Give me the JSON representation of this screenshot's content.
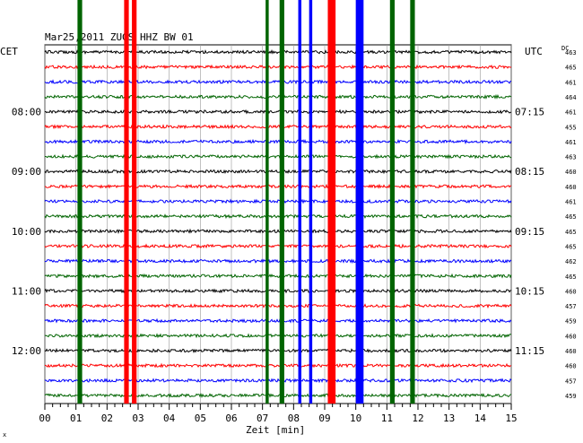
{
  "chart_data": {
    "type": "line",
    "title": "Mar25,2011  ZUGS HHZ BW 01",
    "left_zone_label": "CET",
    "right_zone_label": "UTC",
    "dc_header": "DC",
    "xlabel": "Zeit [min]",
    "x_ticks": [
      "00",
      "01",
      "02",
      "03",
      "04",
      "05",
      "06",
      "07",
      "08",
      "09",
      "10",
      "11",
      "12",
      "13",
      "14",
      "15"
    ],
    "xlim": [
      0,
      15
    ],
    "traces_per_row_group": 4,
    "trace_colors": [
      "#000000",
      "#ff0000",
      "#0000ff",
      "#006400"
    ],
    "left_time_labels": [
      {
        "trace": 4,
        "text": "08:00"
      },
      {
        "trace": 8,
        "text": "09:00"
      },
      {
        "trace": 12,
        "text": "10:00"
      },
      {
        "trace": 16,
        "text": "11:00"
      },
      {
        "trace": 20,
        "text": "12:00"
      }
    ],
    "right_time_labels": [
      {
        "trace": 4,
        "text": "07:15"
      },
      {
        "trace": 8,
        "text": "08:15"
      },
      {
        "trace": 12,
        "text": "09:15"
      },
      {
        "trace": 16,
        "text": "10:15"
      },
      {
        "trace": 20,
        "text": "11:15"
      }
    ],
    "dc_values": [
      "463",
      "465",
      "461",
      "464",
      "461",
      "455",
      "461",
      "463",
      "460",
      "460",
      "461",
      "465",
      "465",
      "465",
      "462",
      "465",
      "460",
      "457",
      "459",
      "460",
      "460",
      "460",
      "457",
      "459"
    ],
    "saturated_bands": [
      {
        "x_min": 1.05,
        "x_max": 1.2,
        "color": "#006400"
      },
      {
        "x_min": 2.55,
        "x_max": 2.7,
        "color": "#ff0000"
      },
      {
        "x_min": 2.8,
        "x_max": 2.95,
        "color": "#ff0000"
      },
      {
        "x_min": 7.1,
        "x_max": 7.2,
        "color": "#006400"
      },
      {
        "x_min": 7.55,
        "x_max": 7.7,
        "color": "#006400"
      },
      {
        "x_min": 8.15,
        "x_max": 8.25,
        "color": "#0000ff"
      },
      {
        "x_min": 8.5,
        "x_max": 8.6,
        "color": "#0000ff"
      },
      {
        "x_min": 9.1,
        "x_max": 9.35,
        "color": "#ff0000"
      },
      {
        "x_min": 10.0,
        "x_max": 10.25,
        "color": "#0000ff"
      },
      {
        "x_min": 11.1,
        "x_max": 11.25,
        "color": "#006400"
      },
      {
        "x_min": 11.75,
        "x_max": 11.9,
        "color": "#006400"
      }
    ],
    "grid": true
  }
}
